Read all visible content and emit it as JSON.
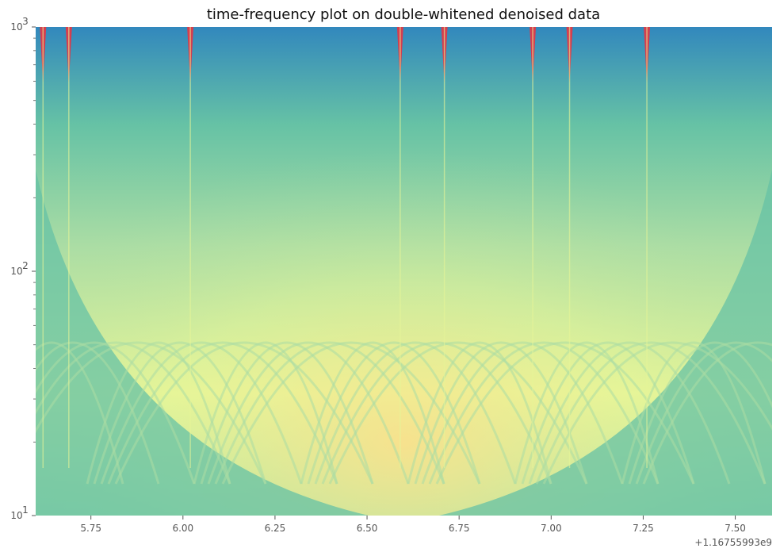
{
  "chart_data": {
    "type": "heatmap",
    "title": "time-frequency plot on double-whitened denoised data",
    "xlabel": "",
    "ylabel": "",
    "x_offset_label": "+1.16755993e9",
    "xlim": [
      5.6,
      7.6
    ],
    "ylim": [
      10,
      1000
    ],
    "y_scale": "log",
    "grid": false,
    "x_ticks": [
      5.75,
      6.0,
      6.25,
      6.5,
      6.75,
      7.0,
      7.25,
      7.5
    ],
    "x_tick_labels": [
      "5.75",
      "6.00",
      "6.25",
      "6.50",
      "6.75",
      "7.00",
      "7.25",
      "7.50"
    ],
    "y_ticks": [
      {
        "value": 10,
        "base": "10",
        "exp": "1"
      },
      {
        "value": 100,
        "base": "10",
        "exp": "2"
      },
      {
        "value": 1000,
        "base": "10",
        "exp": "3"
      }
    ],
    "y_minor_ticks": [
      20,
      30,
      40,
      50,
      60,
      70,
      80,
      90,
      200,
      300,
      400,
      500,
      600,
      700,
      800,
      900
    ],
    "colormap": "Spectral_r",
    "colors": {
      "low": "#3288bd",
      "low_mid": "#66c2a5",
      "mid": "#abdda4",
      "mid_high": "#e6f598",
      "high": "#fee08b",
      "peak": "#d53e4f"
    },
    "transients_x": [
      5.62,
      5.69,
      6.02,
      6.59,
      6.71,
      6.95,
      7.05,
      7.26
    ]
  }
}
